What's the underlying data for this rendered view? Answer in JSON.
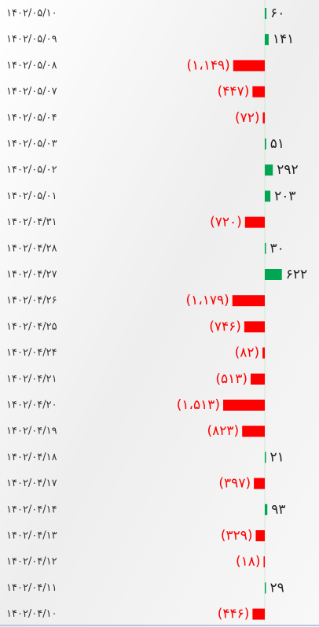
{
  "chart_data": {
    "type": "bar",
    "orientation": "horizontal",
    "categories": [
      "۱۴۰۲/۰۵/۱۰",
      "۱۴۰۲/۰۵/۰۹",
      "۱۴۰۲/۰۵/۰۸",
      "۱۴۰۲/۰۵/۰۷",
      "۱۴۰۲/۰۵/۰۴",
      "۱۴۰۲/۰۵/۰۳",
      "۱۴۰۲/۰۵/۰۲",
      "۱۴۰۲/۰۵/۰۱",
      "۱۴۰۲/۰۴/۳۱",
      "۱۴۰۲/۰۴/۲۸",
      "۱۴۰۲/۰۴/۲۷",
      "۱۴۰۲/۰۴/۲۶",
      "۱۴۰۲/۰۴/۲۵",
      "۱۴۰۲/۰۴/۲۴",
      "۱۴۰۲/۰۴/۲۱",
      "۱۴۰۲/۰۴/۲۰",
      "۱۴۰۲/۰۴/۱۹",
      "۱۴۰۲/۰۴/۱۸",
      "۱۴۰۲/۰۴/۱۷",
      "۱۴۰۲/۰۴/۱۴",
      "۱۴۰۲/۰۴/۱۳",
      "۱۴۰۲/۰۴/۱۲",
      "۱۴۰۲/۰۴/۱۱",
      "۱۴۰۲/۰۴/۱۰"
    ],
    "values": [
      60,
      141,
      -1149,
      -447,
      -72,
      51,
      292,
      203,
      -720,
      30,
      622,
      -1179,
      -746,
      -82,
      -513,
      -1513,
      -823,
      21,
      -397,
      93,
      -329,
      -18,
      29,
      -446
    ],
    "value_labels": [
      "۶۰",
      "۱۴۱",
      "(۱،۱۴۹)",
      "(۴۴۷)",
      "(۷۲)",
      "۵۱",
      "۲۹۲",
      "۲۰۳",
      "(۷۲۰)",
      "۳۰",
      "۶۲۲",
      "(۱،۱۷۹)",
      "(۷۴۶)",
      "(۸۲)",
      "(۵۱۳)",
      "(۱،۵۱۳)",
      "(۸۲۳)",
      "۲۱",
      "(۳۹۷)",
      "۹۳",
      "(۳۲۹)",
      "(۱۸)",
      "۲۹",
      "(۴۴۶)"
    ],
    "positive_color": "#00a651",
    "negative_color": "#ff0000"
  }
}
